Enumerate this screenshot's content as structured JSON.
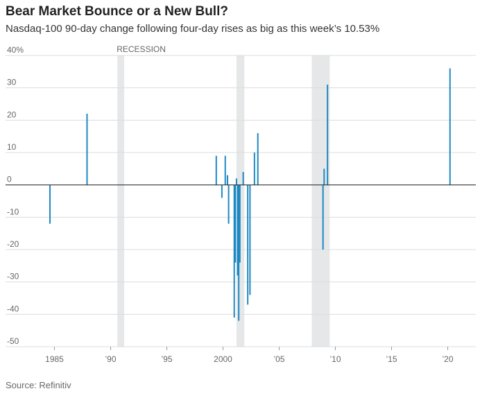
{
  "title": "Bear Market Bounce or a New Bull?",
  "subtitle": "Nasdaq-100 90-day change following four-day rises as big as this week’s 10.53%",
  "source": "Source: Refinitiv",
  "colors": {
    "bar": "#1f88c2",
    "recession": "#e6e7e8",
    "grid": "#dcdcdc",
    "zero": "#333333"
  },
  "chart_data": {
    "type": "bar",
    "xlim": [
      1982.5,
      2022.5
    ],
    "ylim": [
      -50,
      40
    ],
    "grid": true,
    "y_ticks": [
      {
        "value": 40,
        "label": "40%"
      },
      {
        "value": 30,
        "label": "30"
      },
      {
        "value": 20,
        "label": "20"
      },
      {
        "value": 10,
        "label": "10"
      },
      {
        "value": 0,
        "label": "0"
      },
      {
        "value": -10,
        "label": "-10"
      },
      {
        "value": -20,
        "label": "-20"
      },
      {
        "value": -30,
        "label": "-30"
      },
      {
        "value": -40,
        "label": "-40"
      },
      {
        "value": -50,
        "label": "-50"
      }
    ],
    "x_ticks": [
      {
        "value": 1985,
        "label": "1985"
      },
      {
        "value": 1990,
        "label": "’90"
      },
      {
        "value": 1995,
        "label": "’95"
      },
      {
        "value": 2000,
        "label": "2000"
      },
      {
        "value": 2005,
        "label": "’05"
      },
      {
        "value": 2010,
        "label": "’10"
      },
      {
        "value": 2015,
        "label": "’15"
      },
      {
        "value": 2020,
        "label": "’20"
      }
    ],
    "recessions": [
      {
        "start": 1990.6,
        "end": 1991.2
      },
      {
        "start": 2001.2,
        "end": 2001.9
      },
      {
        "start": 2007.9,
        "end": 2009.5
      }
    ],
    "recession_label": "RECESSION",
    "series": [
      {
        "x": [
          1984.6,
          1987.9,
          1999.4,
          1999.9,
          2000.2,
          2000.4,
          2000.5,
          2001.0,
          2001.1,
          2001.2,
          2001.3,
          2001.4,
          2001.5,
          2001.8,
          2002.2,
          2002.4,
          2002.8,
          2003.1,
          2008.9,
          2009.0,
          2009.3,
          2020.2
        ],
        "values": [
          -12,
          22,
          9,
          -4,
          9,
          3,
          -12,
          -41,
          -24,
          2,
          -28,
          -42,
          -24,
          4,
          -37,
          -34,
          10,
          16,
          -20,
          5,
          31,
          36
        ]
      }
    ]
  }
}
